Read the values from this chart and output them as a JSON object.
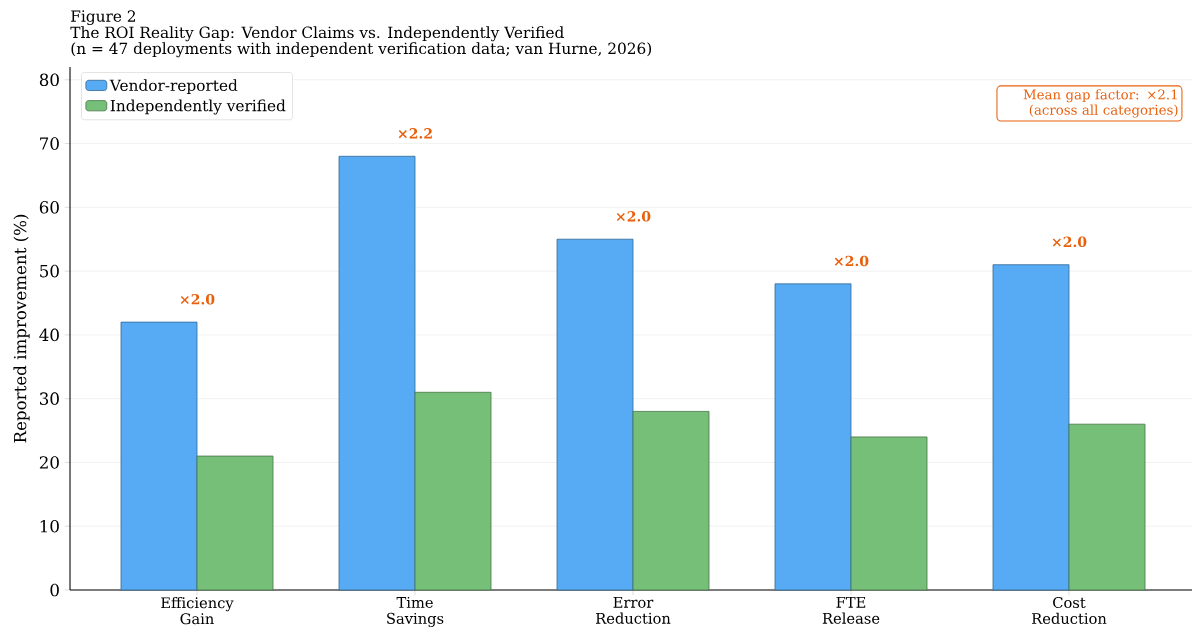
{
  "chart_data": {
    "type": "bar",
    "title": "Figure 2",
    "subtitle": "The ROI Reality Gap: Vendor Claims vs. Independently Verified",
    "ylabel": "Reported improvement (%)",
    "categories": [
      "Efficiency Gain",
      "Time Savings",
      "Error Reduction",
      "FTE Release",
      "Cost Reduction"
    ],
    "series": [
      {
        "name": "Vendor-reported",
        "color": "#57abf5",
        "values": [
          42,
          68,
          55,
          48,
          51
        ]
      },
      {
        "name": "Independently verified",
        "color": "#76bf78",
        "values": [
          21,
          31,
          28,
          24,
          26
        ]
      }
    ],
    "annotations": [
      "(n = 47 deployments with independent verification data; van Hurne, 2026)",
      "Mean gap factor: ×2.1 (across all categories)",
      {
        "text": "×2.0",
        "x": "Efficiency Gain",
        "y": 42
      },
      {
        "text": "×2.2",
        "x": "Time Savings",
        "y": 68
      },
      {
        "text": "×2.0",
        "x": "Error Reduction",
        "y": 55
      },
      {
        "text": "×2.0",
        "x": "FTE Release",
        "y": 48
      },
      {
        "text": "×2.0",
        "x": "Cost Reduction",
        "y": 51
      }
    ],
    "ylim": [
      0,
      82
    ],
    "yticks": [
      0,
      10,
      20,
      30,
      40,
      50,
      60,
      70,
      80
    ],
    "grid": "y",
    "legend": "top left"
  }
}
